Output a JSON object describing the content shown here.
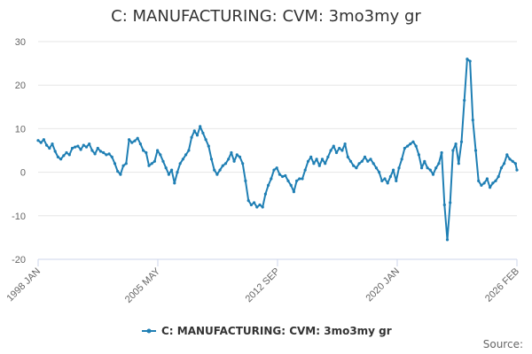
{
  "chart_data": {
    "type": "line",
    "title": "C: MANUFACTURING: CVM: 3mo3my gr",
    "xlabel": "",
    "ylabel": "",
    "x_tick_labels": [
      "1998 JAN",
      "2005 MAY",
      "2012 SEP",
      "2020 JAN",
      "2026 FEB"
    ],
    "y_ticks": [
      -20,
      -10,
      0,
      10,
      20,
      30
    ],
    "ylim": [
      -20,
      30
    ],
    "xlim": [
      "1998-01",
      "2026-02"
    ],
    "grid": true,
    "legend_position": "bottom-center",
    "series": [
      {
        "name": "C: MANUFACTURING: CVM: 3mo3my gr",
        "color": "#1f7fb4",
        "points": [
          [
            "1998-01",
            7.3
          ],
          [
            "1998-03",
            6.8
          ],
          [
            "1998-05",
            7.5
          ],
          [
            "1998-07",
            6.2
          ],
          [
            "1998-09",
            5.5
          ],
          [
            "1998-11",
            6.5
          ],
          [
            "1999-01",
            4.8
          ],
          [
            "1999-03",
            3.5
          ],
          [
            "1999-05",
            3.0
          ],
          [
            "1999-07",
            3.8
          ],
          [
            "1999-09",
            4.5
          ],
          [
            "1999-11",
            4.0
          ],
          [
            "2000-01",
            5.5
          ],
          [
            "2000-03",
            5.8
          ],
          [
            "2000-05",
            6.0
          ],
          [
            "2000-07",
            5.2
          ],
          [
            "2000-09",
            6.2
          ],
          [
            "2000-11",
            5.8
          ],
          [
            "2001-01",
            6.5
          ],
          [
            "2001-03",
            5.0
          ],
          [
            "2001-05",
            4.2
          ],
          [
            "2001-07",
            5.5
          ],
          [
            "2001-09",
            4.8
          ],
          [
            "2001-11",
            4.5
          ],
          [
            "2002-01",
            4.0
          ],
          [
            "2002-03",
            4.2
          ],
          [
            "2002-05",
            3.5
          ],
          [
            "2002-07",
            2.0
          ],
          [
            "2002-09",
            0.2
          ],
          [
            "2002-11",
            -0.5
          ],
          [
            "2003-01",
            1.5
          ],
          [
            "2003-03",
            2.0
          ],
          [
            "2003-05",
            7.5
          ],
          [
            "2003-07",
            6.8
          ],
          [
            "2003-09",
            7.2
          ],
          [
            "2003-11",
            7.8
          ],
          [
            "2004-01",
            6.5
          ],
          [
            "2004-03",
            5.0
          ],
          [
            "2004-05",
            4.5
          ],
          [
            "2004-07",
            1.5
          ],
          [
            "2004-09",
            2.0
          ],
          [
            "2004-11",
            2.5
          ],
          [
            "2005-01",
            5.0
          ],
          [
            "2005-03",
            4.0
          ],
          [
            "2005-05",
            2.5
          ],
          [
            "2005-07",
            1.0
          ],
          [
            "2005-09",
            -0.5
          ],
          [
            "2005-11",
            0.5
          ],
          [
            "2006-01",
            -2.5
          ],
          [
            "2006-03",
            0.0
          ],
          [
            "2006-05",
            2.0
          ],
          [
            "2006-07",
            3.0
          ],
          [
            "2006-09",
            4.0
          ],
          [
            "2006-11",
            5.0
          ],
          [
            "2007-01",
            8.0
          ],
          [
            "2007-03",
            9.5
          ],
          [
            "2007-05",
            8.5
          ],
          [
            "2007-07",
            10.5
          ],
          [
            "2007-09",
            9.0
          ],
          [
            "2007-11",
            7.5
          ],
          [
            "2008-01",
            6.0
          ],
          [
            "2008-03",
            3.0
          ],
          [
            "2008-05",
            0.5
          ],
          [
            "2008-07",
            -0.5
          ],
          [
            "2008-09",
            0.5
          ],
          [
            "2008-11",
            1.5
          ],
          [
            "2009-01",
            2.0
          ],
          [
            "2009-03",
            3.0
          ],
          [
            "2009-05",
            4.5
          ],
          [
            "2009-07",
            2.5
          ],
          [
            "2009-09",
            4.0
          ],
          [
            "2009-11",
            3.5
          ],
          [
            "2010-01",
            2.0
          ],
          [
            "2010-03",
            -2.0
          ],
          [
            "2010-05",
            -6.5
          ],
          [
            "2010-07",
            -7.5
          ],
          [
            "2010-09",
            -7.0
          ],
          [
            "2010-11",
            -8.0
          ],
          [
            "2011-01",
            -7.5
          ],
          [
            "2011-03",
            -8.0
          ],
          [
            "2011-05",
            -5.0
          ],
          [
            "2011-07",
            -3.0
          ],
          [
            "2011-09",
            -1.5
          ],
          [
            "2011-11",
            0.5
          ],
          [
            "2012-01",
            1.0
          ],
          [
            "2012-03",
            -0.5
          ],
          [
            "2012-05",
            -1.0
          ],
          [
            "2012-07",
            -0.8
          ],
          [
            "2012-09",
            -2.0
          ],
          [
            "2012-11",
            -3.0
          ],
          [
            "2013-01",
            -4.5
          ],
          [
            "2013-03",
            -2.0
          ],
          [
            "2013-05",
            -1.5
          ],
          [
            "2013-07",
            -1.5
          ],
          [
            "2013-09",
            0.5
          ],
          [
            "2013-11",
            2.5
          ],
          [
            "2014-01",
            3.5
          ],
          [
            "2014-03",
            2.0
          ],
          [
            "2014-05",
            3.0
          ],
          [
            "2014-07",
            1.5
          ],
          [
            "2014-09",
            3.0
          ],
          [
            "2014-11",
            2.0
          ],
          [
            "2015-01",
            3.5
          ],
          [
            "2015-03",
            5.0
          ],
          [
            "2015-05",
            6.0
          ],
          [
            "2015-07",
            4.5
          ],
          [
            "2015-09",
            5.5
          ],
          [
            "2015-11",
            5.0
          ],
          [
            "2016-01",
            6.5
          ],
          [
            "2016-03",
            3.5
          ],
          [
            "2016-05",
            2.5
          ],
          [
            "2016-07",
            1.5
          ],
          [
            "2016-09",
            1.0
          ],
          [
            "2016-11",
            2.0
          ],
          [
            "2017-01",
            2.5
          ],
          [
            "2017-03",
            3.5
          ],
          [
            "2017-05",
            2.5
          ],
          [
            "2017-07",
            3.0
          ],
          [
            "2017-09",
            2.0
          ],
          [
            "2017-11",
            1.0
          ],
          [
            "2018-01",
            0.0
          ],
          [
            "2018-03",
            -2.0
          ],
          [
            "2018-05",
            -1.5
          ],
          [
            "2018-07",
            -2.5
          ],
          [
            "2018-09",
            -1.0
          ],
          [
            "2018-11",
            0.5
          ],
          [
            "2019-01",
            -2.0
          ],
          [
            "2019-03",
            1.0
          ],
          [
            "2019-05",
            3.0
          ],
          [
            "2019-07",
            5.5
          ],
          [
            "2019-09",
            6.0
          ],
          [
            "2019-11",
            6.5
          ],
          [
            "2020-01",
            7.0
          ],
          [
            "2020-03",
            6.0
          ],
          [
            "2020-05",
            4.0
          ],
          [
            "2020-07",
            1.0
          ],
          [
            "2020-09",
            2.5
          ],
          [
            "2020-11",
            1.0
          ],
          [
            "2021-01",
            0.5
          ],
          [
            "2021-03",
            -0.5
          ],
          [
            "2021-05",
            1.0
          ],
          [
            "2021-07",
            2.0
          ],
          [
            "2021-09",
            4.5
          ],
          [
            "2021-11",
            -7.5
          ],
          [
            "2022-01",
            -15.5
          ],
          [
            "2022-03",
            -7.0
          ],
          [
            "2022-05",
            5.0
          ],
          [
            "2022-07",
            6.5
          ],
          [
            "2022-09",
            2.0
          ],
          [
            "2022-11",
            7.0
          ],
          [
            "2023-01",
            16.5
          ],
          [
            "2023-03",
            26.0
          ],
          [
            "2023-05",
            25.5
          ],
          [
            "2023-07",
            12.0
          ],
          [
            "2023-09",
            5.0
          ],
          [
            "2023-11",
            -2.0
          ],
          [
            "2024-01",
            -3.0
          ],
          [
            "2024-03",
            -2.5
          ],
          [
            "2024-05",
            -1.5
          ],
          [
            "2024-07",
            -3.5
          ],
          [
            "2024-09",
            -2.5
          ],
          [
            "2024-11",
            -2.0
          ],
          [
            "2025-01",
            -1.0
          ],
          [
            "2025-03",
            1.0
          ],
          [
            "2025-05",
            2.0
          ],
          [
            "2025-07",
            4.0
          ],
          [
            "2025-09",
            3.0
          ],
          [
            "2025-11",
            2.5
          ],
          [
            "2026-01",
            2.0
          ],
          [
            "2026-02",
            0.5
          ]
        ]
      }
    ]
  },
  "credits": "Source:"
}
